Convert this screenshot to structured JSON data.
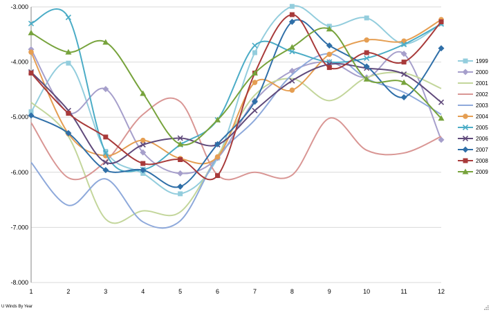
{
  "footer_text": "U Winds By Year",
  "chart_data": {
    "type": "line",
    "title": "",
    "xlabel": "",
    "ylabel": "",
    "x": [
      1,
      2,
      3,
      4,
      5,
      6,
      7,
      8,
      9,
      10,
      11,
      12
    ],
    "x_tick_labels": [
      "1",
      "2",
      "3",
      "4",
      "5",
      "6",
      "7",
      "8",
      "9",
      "10",
      "11",
      "12"
    ],
    "ylim": [
      -8,
      -3
    ],
    "y_ticks": [
      -8,
      -7,
      -6,
      -5,
      -4,
      -3
    ],
    "y_tick_labels": [
      "-8.000",
      "-7.000",
      "-6.000",
      "-5.000",
      "-4.000",
      "-3.000"
    ],
    "grid": "horizontal",
    "legend_position": "right",
    "smoothed": true,
    "series": [
      {
        "name": "1999",
        "color": "#93CDDD",
        "marker": "square",
        "values": [
          -4.9,
          -4.02,
          -5.62,
          -6.02,
          -6.39,
          -5.74,
          -3.83,
          -2.99,
          -3.35,
          -3.2,
          -3.67,
          -3.3
        ]
      },
      {
        "name": "2000",
        "color": "#A69FCB",
        "marker": "diamond",
        "values": [
          -3.77,
          -4.92,
          -4.49,
          -5.64,
          -6.02,
          -5.74,
          -4.7,
          -4.16,
          -4.0,
          -4.28,
          -3.85,
          -5.41
        ]
      },
      {
        "name": "2001",
        "color": "#C3D69B",
        "marker": "none",
        "values": [
          -4.73,
          -5.35,
          -6.85,
          -6.7,
          -6.72,
          -5.7,
          -4.6,
          -4.3,
          -4.7,
          -4.28,
          -4.2,
          -4.48
        ]
      },
      {
        "name": "2002",
        "color": "#D99694",
        "marker": "none",
        "values": [
          -5.1,
          -6.1,
          -5.8,
          -4.95,
          -4.72,
          -6.05,
          -6.0,
          -6.05,
          -5.02,
          -5.6,
          -5.65,
          -5.35
        ]
      },
      {
        "name": "2003",
        "color": "#8EA9DB",
        "marker": "none",
        "values": [
          -5.82,
          -6.6,
          -6.12,
          -6.9,
          -6.88,
          -5.72,
          -5.05,
          -4.23,
          -3.85,
          -4.3,
          -4.55,
          -4.95
        ]
      },
      {
        "name": "2004",
        "color": "#E59E52",
        "marker": "circle",
        "values": [
          -3.82,
          -5.3,
          -5.7,
          -5.42,
          -5.75,
          -5.72,
          -4.37,
          -4.51,
          -3.86,
          -3.6,
          -3.62,
          -3.23
        ]
      },
      {
        "name": "2005",
        "color": "#4BACC6",
        "marker": "x",
        "values": [
          -3.3,
          -3.19,
          -5.65,
          -5.95,
          -5.5,
          -5.05,
          -3.7,
          -3.81,
          -4.0,
          -3.93,
          -3.68,
          -3.31
        ]
      },
      {
        "name": "2006",
        "color": "#604A7B",
        "marker": "x",
        "values": [
          -4.18,
          -4.88,
          -5.82,
          -5.5,
          -5.38,
          -5.5,
          -4.88,
          -4.34,
          -4.04,
          -4.11,
          -4.22,
          -4.73
        ]
      },
      {
        "name": "2007",
        "color": "#2F6FA8",
        "marker": "diamond",
        "values": [
          -4.97,
          -5.29,
          -5.96,
          -5.96,
          -6.26,
          -5.49,
          -4.72,
          -3.27,
          -3.7,
          -4.08,
          -4.64,
          -3.75
        ]
      },
      {
        "name": "2008",
        "color": "#A83A3A",
        "marker": "square",
        "values": [
          -4.2,
          -4.93,
          -5.36,
          -5.84,
          -5.77,
          -6.06,
          -4.2,
          -3.14,
          -4.1,
          -3.83,
          -4.0,
          -3.27
        ]
      },
      {
        "name": "2009",
        "color": "#77A33C",
        "marker": "triangle",
        "values": [
          -3.47,
          -3.82,
          -3.64,
          -4.57,
          -5.49,
          -5.05,
          -4.2,
          -3.73,
          -3.4,
          -4.31,
          -4.37,
          -5.02
        ]
      }
    ]
  }
}
